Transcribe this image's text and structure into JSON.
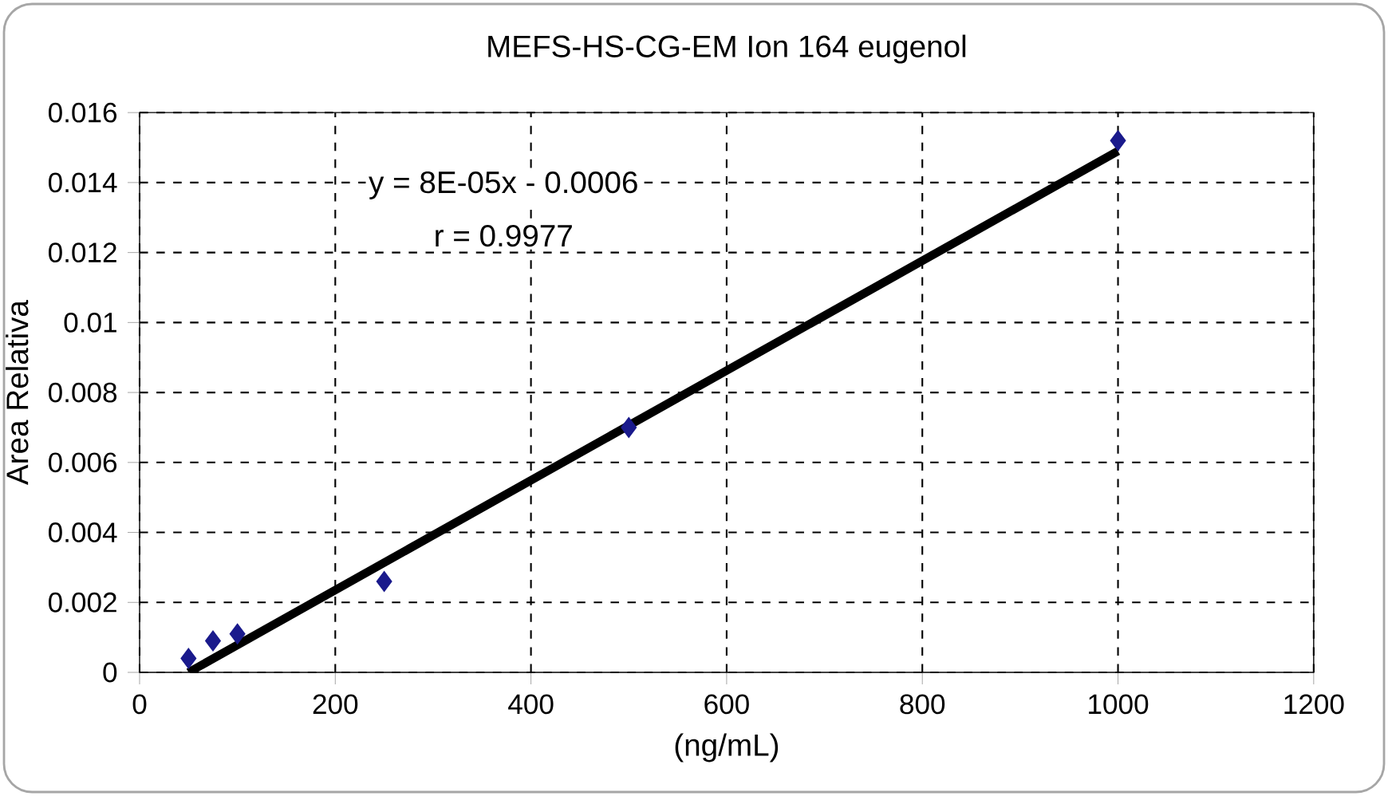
{
  "chart_data": {
    "type": "scatter",
    "title": "MEFS-HS-CG-EM  Ion 164  eugenol",
    "xlabel": "(ng/mL)",
    "ylabel": "Area Relativa",
    "series": [
      {
        "color": "#1a1a8c",
        "marker": "diamond",
        "x": [
          50,
          75,
          100,
          250,
          500,
          1000
        ],
        "values": [
          0.0004,
          0.0009,
          0.0011,
          0.0026,
          0.007,
          0.0152
        ]
      },
      {
        "type": "line",
        "color": "#000000",
        "marker": "none",
        "line_style": "solid",
        "x": [
          50,
          1000
        ],
        "values": [
          0.0,
          0.0149
        ]
      }
    ],
    "annotations": [
      "y = 8E-05x - 0.0006",
      "r = 0.9977"
    ],
    "xlim": [
      0,
      1200
    ],
    "xticks": [
      0,
      200,
      400,
      600,
      800,
      1000,
      1200
    ],
    "ylim": [
      0,
      0.016
    ],
    "yticks": [
      0,
      0.002,
      0.004,
      0.006,
      0.008,
      0.01,
      0.012,
      0.014,
      0.016
    ],
    "grid": true
  }
}
